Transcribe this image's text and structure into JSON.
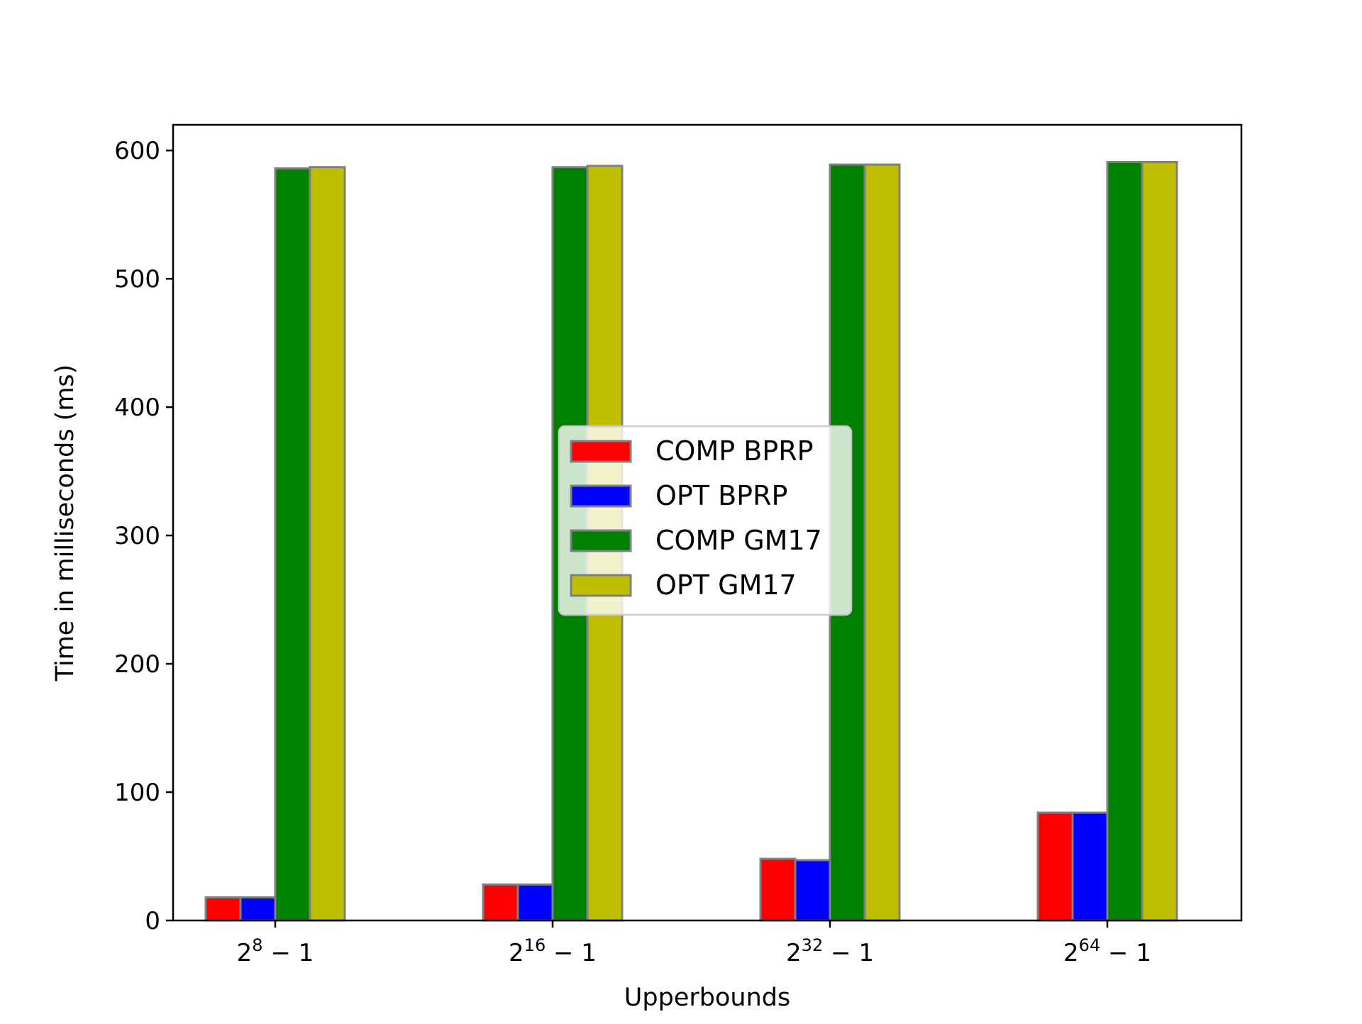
{
  "chart_data": {
    "type": "bar",
    "title": "",
    "xlabel": "Upperbounds",
    "ylabel": "Time in milliseconds (ms)",
    "ylim": [
      0,
      620
    ],
    "yticks": [
      0,
      100,
      200,
      300,
      400,
      500,
      600
    ],
    "categories": [
      {
        "base": "2",
        "exp": "8",
        "rest": "− 1"
      },
      {
        "base": "2",
        "exp": "16",
        "rest": "− 1"
      },
      {
        "base": "2",
        "exp": "32",
        "rest": "− 1"
      },
      {
        "base": "2",
        "exp": "64",
        "rest": "− 1"
      }
    ],
    "series": [
      {
        "name": "COMP BPRP",
        "color": "#ff0000",
        "values": [
          18,
          28,
          48,
          84
        ]
      },
      {
        "name": "OPT BPRP",
        "color": "#0000ff",
        "values": [
          18,
          28,
          47,
          84
        ]
      },
      {
        "name": "COMP GM17",
        "color": "#008000",
        "values": [
          586,
          587,
          589,
          591
        ]
      },
      {
        "name": "OPT GM17",
        "color": "#bfbf00",
        "values": [
          587,
          588,
          589,
          591
        ]
      }
    ],
    "bar_edge_color": "#808080",
    "grid": false,
    "legend_position": "center"
  }
}
